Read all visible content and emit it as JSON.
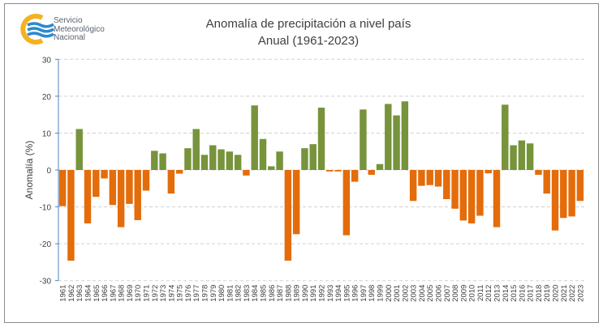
{
  "logo": {
    "lines": [
      "Servicio",
      "Meteorológico",
      "Nacional"
    ]
  },
  "chart_data": {
    "type": "bar",
    "title": "Anomalía de precipitación a nivel país",
    "subtitle": "Anual (1961-2023)",
    "xlabel": "",
    "ylabel": "Anomalía (%)",
    "ylim": [
      -30,
      30
    ],
    "yticks": [
      30,
      20,
      10,
      0,
      -10,
      -20,
      -30
    ],
    "grid": true,
    "colors": {
      "positive": "#77933c",
      "negative": "#e46c0a"
    },
    "categories": [
      "1961",
      "1962",
      "1963",
      "1964",
      "1965",
      "1966",
      "1967",
      "1968",
      "1969",
      "1970",
      "1971",
      "1972",
      "1973",
      "1974",
      "1975",
      "1976",
      "1977",
      "1978",
      "1979",
      "1980",
      "1981",
      "1982",
      "1983",
      "1984",
      "1985",
      "1986",
      "1987",
      "1988",
      "1989",
      "1990",
      "1991",
      "1992",
      "1993",
      "1994",
      "1995",
      "1996",
      "1997",
      "1998",
      "1999",
      "2000",
      "2001",
      "2002",
      "2003",
      "2004",
      "2005",
      "2006",
      "2007",
      "2008",
      "2009",
      "2010",
      "2011",
      "2012",
      "2013",
      "2014",
      "2015",
      "2016",
      "2017",
      "2018",
      "2019",
      "2020",
      "2021",
      "2022",
      "2023"
    ],
    "values": [
      -9.8,
      -24.6,
      11.1,
      -14.5,
      -7.3,
      -2.3,
      -9.5,
      -15.5,
      -9.2,
      -13.6,
      -5.6,
      5.2,
      4.5,
      -6.4,
      -1.0,
      5.9,
      11.1,
      4.1,
      6.7,
      5.6,
      5.0,
      4.1,
      -1.5,
      17.5,
      8.4,
      1.0,
      5.0,
      -24.6,
      -17.4,
      5.9,
      7.0,
      16.9,
      -0.4,
      -0.4,
      -17.7,
      -3.2,
      16.4,
      -1.3,
      1.6,
      17.9,
      14.8,
      18.6,
      -8.4,
      -4.3,
      -4.1,
      -4.5,
      -7.9,
      -10.5,
      -13.7,
      -14.5,
      -12.4,
      -0.9,
      -15.5,
      17.7,
      6.7,
      8.0,
      7.2,
      -1.3,
      -6.4,
      -16.4,
      -13.0,
      -12.6,
      -8.4
    ]
  }
}
